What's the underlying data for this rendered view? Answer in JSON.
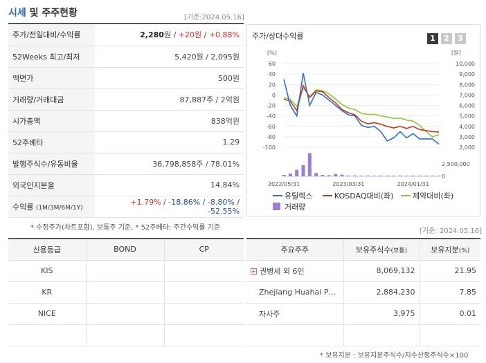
{
  "header": {
    "title_a": "시세",
    "title_b": "및 주주현황",
    "base_date": "[기준:2024.05.16]"
  },
  "info_rows": [
    {
      "key": "주가/전일대비/수익률",
      "v1": "2,280",
      "u1": "원",
      "sep1": " / ",
      "v2": "+20",
      "u2": "원",
      "sep2": " / ",
      "v3": "+0.88%"
    },
    {
      "key": "52Weeks 최고/최저",
      "value": "5,420원 / 2,095원"
    },
    {
      "key": "액면가",
      "value": "500원"
    },
    {
      "key": "거래량/거래대금",
      "value": "87,887주 / 2억원"
    },
    {
      "key": "시가총액",
      "value": "838억원"
    },
    {
      "key": "52주베타",
      "value": "1.29"
    },
    {
      "key": "발행주식수/유동비율",
      "value": "36,798,858주 / 78.01%"
    },
    {
      "key": "외국인지분율",
      "value": "14.84%"
    },
    {
      "key": "수익률",
      "key_sub": "(1M/3M/6M/1Y)",
      "r1": "+1.79%",
      "r2": "-18.86%",
      "r3": "-8.80%",
      "r4": "-52.55%",
      "sep": " / "
    }
  ],
  "note1": "* 수정주가(차트포함), 보통주 기준, * 52주베타: 주간수익률 기준",
  "chart": {
    "title": "주가/상대수익률",
    "tabs": [
      "1",
      "2",
      "3"
    ],
    "left_unit": "[%]",
    "right_unit": "[원]",
    "left_ticks": [
      "60",
      "40",
      "20",
      "0",
      "-20",
      "-40",
      "-60",
      "-80",
      "-100"
    ],
    "right_ticks": [
      "10,000",
      "9,000",
      "8,000",
      "7,000",
      "6,000",
      "5,000",
      "4,000",
      "3,000",
      "2,000"
    ],
    "vol_tick_top": "2,500,000",
    "vol_tick_bottom": "0",
    "x_labels": [
      "2022/05/31",
      "2023/03/31",
      "2024/01/31"
    ],
    "legend": [
      "유틸렉스",
      "KOSDAQ대비(좌)",
      "제약대비(좌)",
      "거래량"
    ],
    "colors": {
      "main": "#2e6dd0",
      "kosdaq": "#c0391b",
      "pharma": "#8cc63f",
      "volume": "#9b7fd6"
    }
  },
  "chart_data": {
    "type": "line",
    "x": [
      "2022/05",
      "2022/06",
      "2022/07",
      "2022/08",
      "2022/09",
      "2022/10",
      "2022/11",
      "2022/12",
      "2023/01",
      "2023/02",
      "2023/03",
      "2023/04",
      "2023/05",
      "2023/06",
      "2023/07",
      "2023/08",
      "2023/09",
      "2023/10",
      "2023/11",
      "2023/12",
      "2024/01",
      "2024/02",
      "2024/03",
      "2024/04",
      "2024/05"
    ],
    "ylim": [
      -100,
      60
    ],
    "series": [
      {
        "name": "유틸렉스",
        "values": [
          30,
          -20,
          -40,
          42,
          -20,
          5,
          0,
          -10,
          -20,
          -30,
          -38,
          -40,
          -58,
          -62,
          -60,
          -70,
          -88,
          -82,
          -70,
          -82,
          -74,
          -84,
          -84,
          -84,
          -94
        ]
      },
      {
        "name": "KOSDAQ대비(좌)",
        "values": [
          -8,
          -12,
          -30,
          18,
          -5,
          8,
          6,
          -5,
          -15,
          -28,
          -34,
          -38,
          -50,
          -55,
          -53,
          -56,
          -60,
          -63,
          -60,
          -64,
          -60,
          -66,
          -68,
          -70,
          -71
        ]
      },
      {
        "name": "제약대비(좌)",
        "values": [
          -5,
          -8,
          -22,
          14,
          -3,
          10,
          8,
          2,
          -8,
          -18,
          -25,
          -28,
          -35,
          -37,
          -37,
          -40,
          -42,
          -45,
          -44,
          -48,
          -50,
          -58,
          -70,
          -80,
          -76
        ]
      },
      {
        "name": "거래량",
        "values": [
          150000,
          300000,
          700000,
          1200000,
          2500000,
          350000,
          150000,
          120000,
          250000,
          180000,
          80000,
          90000,
          40000,
          30000,
          25000,
          60000,
          70000,
          60000,
          40000,
          30000,
          40000,
          60000,
          30000,
          40000,
          30000
        ]
      }
    ]
  },
  "credit": {
    "headers": [
      "신용등급",
      "BOND",
      "CP"
    ],
    "rows": [
      {
        "name": "KIS",
        "bond": "",
        "cp": ""
      },
      {
        "name": "KR",
        "bond": "",
        "cp": ""
      },
      {
        "name": "NICE",
        "bond": "",
        "cp": ""
      },
      {
        "name": "",
        "bond": "",
        "cp": ""
      }
    ]
  },
  "holders_base_date": "[기준: 2024.05.16]",
  "holders": {
    "headers": {
      "h1": "주요주주",
      "h2": "보유주식수",
      "h2s": "(보통)",
      "h3": "보유지분",
      "h3s": "(%)"
    },
    "rows": [
      {
        "name": "권병세 외 6인",
        "shares": "8,069,132",
        "pct": "21.95",
        "expandable": true
      },
      {
        "name": "Zhejiang Huahai Phar…",
        "shares": "2,884,230",
        "pct": "7.85",
        "expandable": false
      },
      {
        "name": "자사주",
        "shares": "3,975",
        "pct": "0.01",
        "expandable": false
      },
      {
        "name": "",
        "shares": "",
        "pct": "",
        "expandable": false
      }
    ]
  },
  "note2": "* 보유지분 : 보유지분주식수/지수산정주식수×100"
}
